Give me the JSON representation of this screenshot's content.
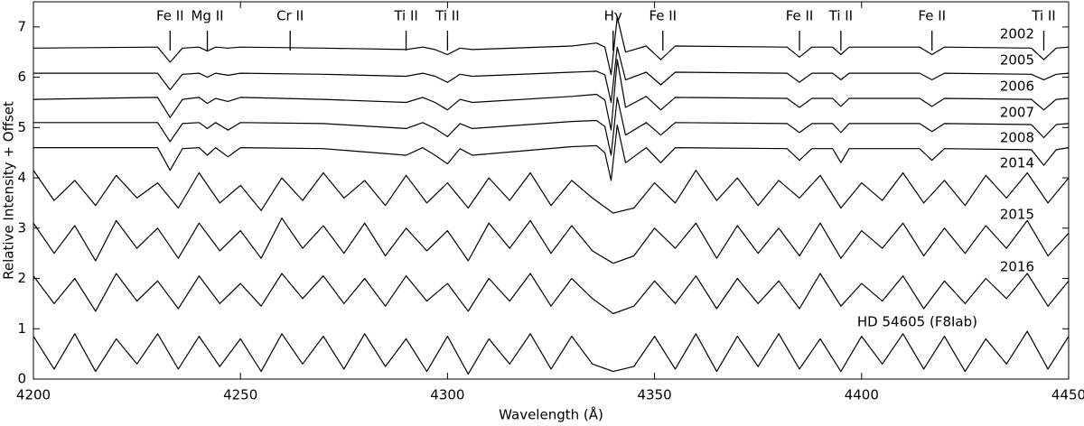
{
  "chart_data": {
    "type": "line",
    "xlabel": "Wavelength (Å)",
    "ylabel": "Relative Intensity + Offset",
    "xlim": [
      4200,
      4450
    ],
    "xticks": [
      4200,
      4250,
      4300,
      4350,
      4400,
      4450
    ],
    "ylim": [
      0,
      7.5
    ],
    "yticks": [
      0,
      1,
      2,
      3,
      4,
      5,
      6,
      7
    ],
    "annotations": [
      {
        "label": "Fe II",
        "x": 4233
      },
      {
        "label": "Mg II",
        "x": 4242
      },
      {
        "label": "Cr II",
        "x": 4262
      },
      {
        "label": "Ti II",
        "x": 4290
      },
      {
        "label": "Ti II",
        "x": 4300
      },
      {
        "label": "Hγ",
        "x": 4340
      },
      {
        "label": "Fe II",
        "x": 4352
      },
      {
        "label": "Fe II",
        "x": 4385
      },
      {
        "label": "Ti II",
        "x": 4395
      },
      {
        "label": "Fe II",
        "x": 4417
      },
      {
        "label": "Ti II",
        "x": 4444
      }
    ],
    "series": [
      {
        "name": "2002",
        "color": "#000000",
        "x": [
          4200,
          4230,
          4233,
          4236,
          4240,
          4242,
          4244,
          4247,
          4250,
          4270,
          4290,
          4294,
          4297,
          4300,
          4303,
          4306,
          4330,
          4336,
          4338,
          4339.5,
          4341,
          4343,
          4348,
          4351.5,
          4355,
          4382,
          4385,
          4388,
          4393,
          4395,
          4397,
          4414,
          4417,
          4420,
          4441,
          4444,
          4447,
          4450
        ],
        "values": [
          6.58,
          6.6,
          6.3,
          6.58,
          6.6,
          6.52,
          6.6,
          6.58,
          6.6,
          6.58,
          6.55,
          6.6,
          6.55,
          6.45,
          6.58,
          6.55,
          6.62,
          6.68,
          6.6,
          6.05,
          7.2,
          6.5,
          6.62,
          6.35,
          6.62,
          6.6,
          6.4,
          6.6,
          6.6,
          6.45,
          6.6,
          6.6,
          6.45,
          6.6,
          6.58,
          6.35,
          6.58,
          6.6
        ]
      },
      {
        "name": "2005",
        "color": "#000000",
        "x": [
          4200,
          4230,
          4233,
          4236,
          4240,
          4242,
          4244,
          4247,
          4250,
          4270,
          4290,
          4294,
          4297,
          4300,
          4303,
          4306,
          4330,
          4336,
          4338,
          4339.5,
          4341,
          4343,
          4348,
          4351.5,
          4355,
          4382,
          4385,
          4388,
          4393,
          4395,
          4397,
          4414,
          4417,
          4420,
          4441,
          4444,
          4447,
          4450
        ],
        "values": [
          6.08,
          6.08,
          5.75,
          6.06,
          6.08,
          6.0,
          6.08,
          6.04,
          6.08,
          6.06,
          6.02,
          6.08,
          6.02,
          5.9,
          6.06,
          6.02,
          6.1,
          6.12,
          6.05,
          5.5,
          6.6,
          5.95,
          6.1,
          5.85,
          6.1,
          6.08,
          5.9,
          6.08,
          6.08,
          5.95,
          6.08,
          6.08,
          5.95,
          6.08,
          6.06,
          5.95,
          6.06,
          6.08
        ]
      },
      {
        "name": "2006",
        "color": "#000000",
        "x": [
          4200,
          4230,
          4233,
          4236,
          4240,
          4242,
          4244,
          4247,
          4250,
          4270,
          4290,
          4294,
          4297,
          4300,
          4303,
          4306,
          4330,
          4336,
          4338,
          4339.5,
          4341,
          4343,
          4348,
          4351.5,
          4355,
          4382,
          4385,
          4388,
          4393,
          4395,
          4397,
          4414,
          4417,
          4420,
          4441,
          4444,
          4447,
          4450
        ],
        "values": [
          5.56,
          5.6,
          5.2,
          5.56,
          5.6,
          5.48,
          5.58,
          5.52,
          5.6,
          5.56,
          5.5,
          5.6,
          5.5,
          5.35,
          5.56,
          5.5,
          5.62,
          5.66,
          5.55,
          4.95,
          6.35,
          5.4,
          5.62,
          5.35,
          5.6,
          5.58,
          5.4,
          5.58,
          5.58,
          5.42,
          5.58,
          5.58,
          5.42,
          5.58,
          5.56,
          5.35,
          5.56,
          5.58
        ]
      },
      {
        "name": "2007",
        "color": "#000000",
        "x": [
          4200,
          4230,
          4233,
          4236,
          4240,
          4242,
          4244,
          4247,
          4250,
          4270,
          4290,
          4294,
          4297,
          4300,
          4303,
          4306,
          4330,
          4336,
          4338,
          4339.5,
          4341,
          4343,
          4348,
          4351.5,
          4355,
          4382,
          4385,
          4388,
          4393,
          4395,
          4397,
          4414,
          4417,
          4420,
          4441,
          4444,
          4447,
          4450
        ],
        "values": [
          5.1,
          5.1,
          4.72,
          5.08,
          5.1,
          4.98,
          5.1,
          4.95,
          5.1,
          5.08,
          4.98,
          5.1,
          4.98,
          4.82,
          5.08,
          4.98,
          5.12,
          5.14,
          5.02,
          4.45,
          5.6,
          4.85,
          5.1,
          4.85,
          5.1,
          5.08,
          4.9,
          5.08,
          5.08,
          4.9,
          5.08,
          5.08,
          4.92,
          5.08,
          5.06,
          4.8,
          5.06,
          5.08
        ]
      },
      {
        "name": "2008",
        "color": "#000000",
        "x": [
          4200,
          4230,
          4233,
          4236,
          4240,
          4242,
          4244,
          4247,
          4250,
          4270,
          4290,
          4294,
          4297,
          4300,
          4303,
          4306,
          4330,
          4336,
          4338,
          4339.5,
          4341,
          4343,
          4348,
          4351.5,
          4355,
          4382,
          4385,
          4388,
          4393,
          4395,
          4397,
          4414,
          4417,
          4420,
          4441,
          4444,
          4447,
          4450
        ],
        "values": [
          4.6,
          4.6,
          4.15,
          4.58,
          4.6,
          4.45,
          4.6,
          4.42,
          4.6,
          4.58,
          4.45,
          4.6,
          4.45,
          4.28,
          4.58,
          4.45,
          4.62,
          4.64,
          4.5,
          3.95,
          5.05,
          4.3,
          4.6,
          4.3,
          4.6,
          4.58,
          4.35,
          4.58,
          4.58,
          4.3,
          4.58,
          4.58,
          4.35,
          4.58,
          4.56,
          4.25,
          4.56,
          4.6
        ]
      },
      {
        "name": "2014",
        "color": "#000000",
        "x": [
          4200,
          4205,
          4210,
          4215,
          4220,
          4225,
          4230,
          4235,
          4240,
          4245,
          4250,
          4255,
          4260,
          4265,
          4270,
          4275,
          4280,
          4285,
          4290,
          4295,
          4300,
          4305,
          4310,
          4315,
          4320,
          4325,
          4330,
          4335,
          4340,
          4345,
          4350,
          4355,
          4360,
          4365,
          4370,
          4375,
          4380,
          4385,
          4390,
          4395,
          4400,
          4405,
          4410,
          4415,
          4420,
          4425,
          4430,
          4435,
          4440,
          4445,
          4450
        ],
        "values": [
          4.15,
          3.55,
          3.95,
          3.45,
          4.05,
          3.6,
          3.9,
          3.4,
          4.1,
          3.5,
          3.85,
          3.35,
          4.0,
          3.55,
          4.1,
          3.6,
          3.95,
          3.45,
          4.05,
          3.5,
          3.9,
          3.4,
          4.0,
          3.55,
          4.1,
          3.45,
          3.95,
          3.6,
          3.3,
          3.4,
          3.9,
          3.5,
          4.15,
          3.55,
          4.0,
          3.45,
          3.95,
          3.6,
          4.05,
          3.4,
          3.9,
          3.55,
          4.1,
          3.5,
          3.95,
          3.45,
          4.05,
          3.6,
          4.1,
          3.5,
          4.0
        ]
      },
      {
        "name": "2015",
        "color": "#000000",
        "x": [
          4200,
          4205,
          4210,
          4215,
          4220,
          4225,
          4230,
          4235,
          4240,
          4245,
          4250,
          4255,
          4260,
          4265,
          4270,
          4275,
          4280,
          4285,
          4290,
          4295,
          4300,
          4305,
          4310,
          4315,
          4320,
          4325,
          4330,
          4335,
          4340,
          4345,
          4350,
          4355,
          4360,
          4365,
          4370,
          4375,
          4380,
          4385,
          4390,
          4395,
          4400,
          4405,
          4410,
          4415,
          4420,
          4425,
          4430,
          4435,
          4440,
          4445,
          4450
        ],
        "values": [
          3.1,
          2.5,
          3.05,
          2.35,
          3.15,
          2.6,
          3.0,
          2.4,
          3.1,
          2.55,
          2.95,
          2.4,
          3.2,
          2.6,
          3.05,
          2.5,
          3.1,
          2.45,
          3.0,
          2.55,
          2.95,
          2.35,
          3.1,
          2.6,
          3.15,
          2.5,
          3.05,
          2.55,
          2.3,
          2.45,
          3.0,
          2.6,
          3.1,
          2.4,
          3.05,
          2.5,
          3.0,
          2.45,
          3.1,
          2.4,
          2.95,
          2.6,
          3.1,
          2.45,
          3.0,
          2.5,
          3.05,
          2.6,
          3.15,
          2.45,
          2.9
        ]
      },
      {
        "name": "2016",
        "color": "#000000",
        "x": [
          4200,
          4205,
          4210,
          4215,
          4220,
          4225,
          4230,
          4235,
          4240,
          4245,
          4250,
          4255,
          4260,
          4265,
          4270,
          4275,
          4280,
          4285,
          4290,
          4295,
          4300,
          4305,
          4310,
          4315,
          4320,
          4325,
          4330,
          4335,
          4340,
          4345,
          4350,
          4355,
          4360,
          4365,
          4370,
          4375,
          4380,
          4385,
          4390,
          4395,
          4400,
          4405,
          4410,
          4415,
          4420,
          4425,
          4430,
          4435,
          4440,
          4445,
          4450
        ],
        "values": [
          2.05,
          1.5,
          2.0,
          1.35,
          2.1,
          1.55,
          1.95,
          1.4,
          2.05,
          1.5,
          1.9,
          1.45,
          2.1,
          1.6,
          2.05,
          1.5,
          2.0,
          1.45,
          2.05,
          1.55,
          1.9,
          1.35,
          2.0,
          1.55,
          2.1,
          1.45,
          2.0,
          1.6,
          1.3,
          1.45,
          1.95,
          1.5,
          2.05,
          1.4,
          2.0,
          1.5,
          1.95,
          1.4,
          2.1,
          1.45,
          1.9,
          1.55,
          2.05,
          1.4,
          1.95,
          1.5,
          2.0,
          1.6,
          2.1,
          1.45,
          1.95
        ]
      },
      {
        "name": "HD 54605 (F8Iab)",
        "color": "#000000",
        "x": [
          4200,
          4205,
          4210,
          4215,
          4220,
          4225,
          4230,
          4235,
          4240,
          4245,
          4250,
          4255,
          4260,
          4265,
          4270,
          4275,
          4280,
          4285,
          4290,
          4295,
          4300,
          4305,
          4310,
          4315,
          4320,
          4325,
          4330,
          4335,
          4340,
          4345,
          4350,
          4355,
          4360,
          4365,
          4370,
          4375,
          4380,
          4385,
          4390,
          4395,
          4400,
          4405,
          4410,
          4415,
          4420,
          4425,
          4430,
          4435,
          4440,
          4445,
          4450
        ],
        "values": [
          0.85,
          0.2,
          0.9,
          0.15,
          0.8,
          0.3,
          0.9,
          0.2,
          0.85,
          0.25,
          0.8,
          0.15,
          0.9,
          0.3,
          0.85,
          0.2,
          0.9,
          0.25,
          0.8,
          0.15,
          0.85,
          0.1,
          0.8,
          0.3,
          0.9,
          0.2,
          0.85,
          0.3,
          0.15,
          0.25,
          0.85,
          0.2,
          0.9,
          0.15,
          0.85,
          0.25,
          0.9,
          0.2,
          0.8,
          0.15,
          0.85,
          0.3,
          0.9,
          0.2,
          0.85,
          0.15,
          0.8,
          0.3,
          0.95,
          0.2,
          0.85
        ]
      }
    ]
  }
}
